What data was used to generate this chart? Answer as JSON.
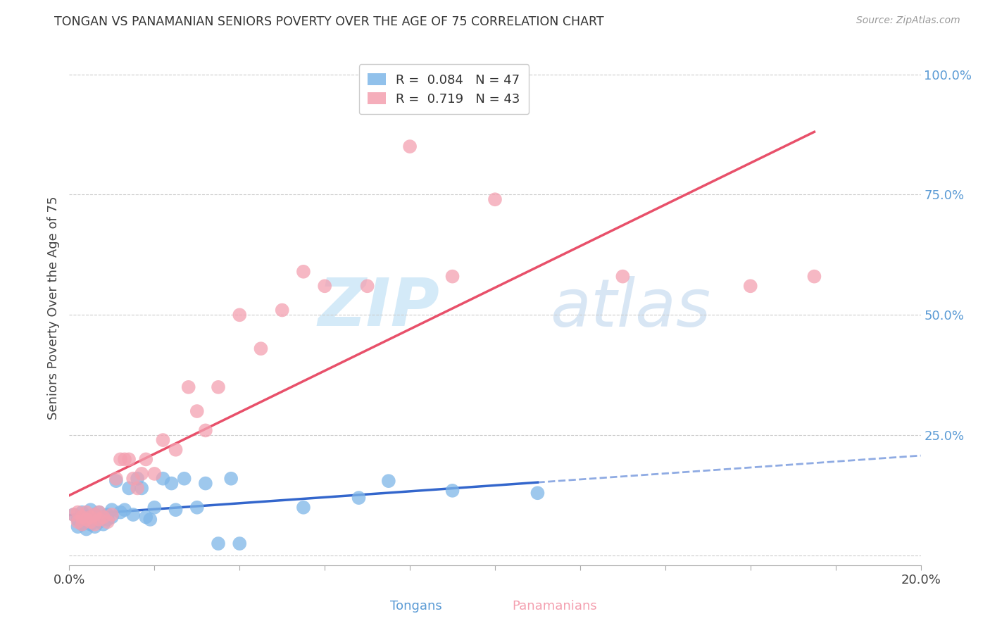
{
  "title": "TONGAN VS PANAMANIAN SENIORS POVERTY OVER THE AGE OF 75 CORRELATION CHART",
  "source": "Source: ZipAtlas.com",
  "ylabel": "Seniors Poverty Over the Age of 75",
  "xlabel_tongans": "Tongans",
  "xlabel_panamanians": "Panamanians",
  "R_tongans": 0.084,
  "N_tongans": 47,
  "R_panamanians": 0.719,
  "N_panamanians": 43,
  "color_tongans": "#7EB6E8",
  "color_panamanians": "#F4A0B0",
  "color_line_tongans": "#3366CC",
  "color_line_panamanians": "#E8506A",
  "xlim": [
    0.0,
    0.2
  ],
  "ylim": [
    -0.02,
    1.05
  ],
  "xticks": [
    0.0,
    0.02,
    0.04,
    0.06,
    0.08,
    0.1,
    0.12,
    0.14,
    0.16,
    0.18,
    0.2
  ],
  "yticks": [
    0.0,
    0.25,
    0.5,
    0.75,
    1.0
  ],
  "ytick_labels": [
    "",
    "25.0%",
    "50.0%",
    "75.0%",
    "100.0%"
  ],
  "tongans_x": [
    0.001,
    0.002,
    0.002,
    0.003,
    0.003,
    0.004,
    0.004,
    0.004,
    0.005,
    0.005,
    0.005,
    0.006,
    0.006,
    0.006,
    0.007,
    0.007,
    0.007,
    0.008,
    0.008,
    0.009,
    0.009,
    0.01,
    0.01,
    0.011,
    0.012,
    0.013,
    0.014,
    0.015,
    0.016,
    0.017,
    0.018,
    0.019,
    0.02,
    0.022,
    0.024,
    0.025,
    0.027,
    0.03,
    0.032,
    0.035,
    0.038,
    0.04,
    0.055,
    0.068,
    0.075,
    0.09,
    0.11
  ],
  "tongans_y": [
    0.085,
    0.075,
    0.06,
    0.09,
    0.065,
    0.08,
    0.07,
    0.055,
    0.095,
    0.08,
    0.065,
    0.075,
    0.085,
    0.06,
    0.09,
    0.07,
    0.075,
    0.08,
    0.065,
    0.085,
    0.075,
    0.095,
    0.08,
    0.155,
    0.09,
    0.095,
    0.14,
    0.085,
    0.16,
    0.14,
    0.08,
    0.075,
    0.1,
    0.16,
    0.15,
    0.095,
    0.16,
    0.1,
    0.15,
    0.025,
    0.16,
    0.025,
    0.1,
    0.12,
    0.155,
    0.135,
    0.13
  ],
  "panamanians_x": [
    0.001,
    0.002,
    0.002,
    0.003,
    0.003,
    0.004,
    0.004,
    0.005,
    0.005,
    0.006,
    0.006,
    0.007,
    0.007,
    0.008,
    0.009,
    0.01,
    0.011,
    0.012,
    0.013,
    0.014,
    0.015,
    0.016,
    0.017,
    0.018,
    0.02,
    0.022,
    0.025,
    0.028,
    0.03,
    0.032,
    0.035,
    0.04,
    0.045,
    0.05,
    0.055,
    0.06,
    0.07,
    0.08,
    0.09,
    0.1,
    0.13,
    0.16,
    0.175
  ],
  "panamanians_y": [
    0.085,
    0.09,
    0.07,
    0.08,
    0.065,
    0.09,
    0.075,
    0.08,
    0.07,
    0.085,
    0.065,
    0.09,
    0.075,
    0.08,
    0.07,
    0.085,
    0.16,
    0.2,
    0.2,
    0.2,
    0.16,
    0.14,
    0.17,
    0.2,
    0.17,
    0.24,
    0.22,
    0.35,
    0.3,
    0.26,
    0.35,
    0.5,
    0.43,
    0.51,
    0.59,
    0.56,
    0.56,
    0.85,
    0.58,
    0.74,
    0.58,
    0.56,
    0.58
  ],
  "watermark_zip": "ZIP",
  "watermark_atlas": "atlas",
  "background_color": "#FFFFFF",
  "grid_color": "#CCCCCC"
}
